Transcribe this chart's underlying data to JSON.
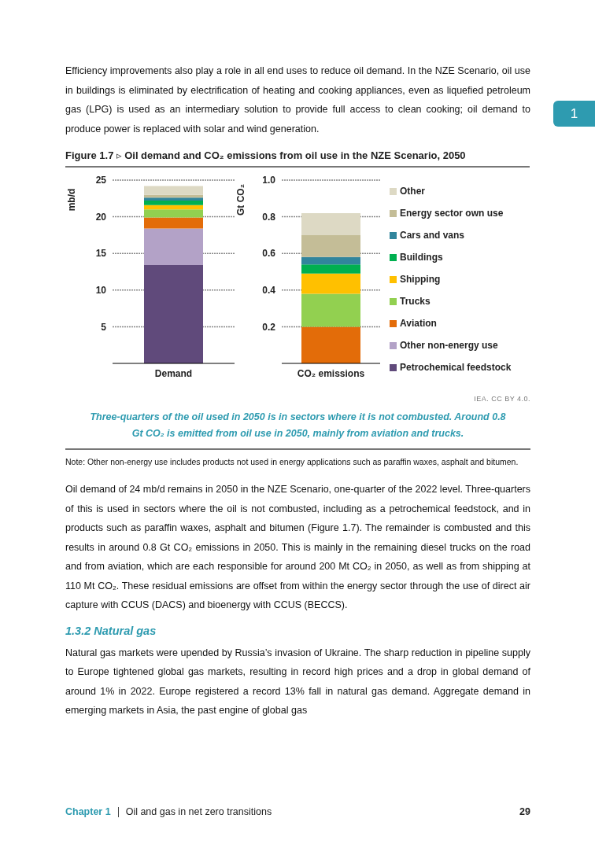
{
  "chart_data": [
    {
      "type": "bar",
      "title": "Figure 1.7 ▹ Oil demand and CO₂ emissions from oil use in the NZE Scenario, 2050",
      "annotations": [
        "Efficiency improvements also play a role in all end uses to reduce oil demand. In the NZE Scenario, oil use in buildings is eliminated by electrification of heating and cooking appliances, even as liquefied petroleum gas (LPG) is used as an intermediary solution to provide full access to clean cooking; oil demand to produce power is replaced with solar and wind generation.",
        "1"
      ],
      "ylabel": "mb/d",
      "categories": [
        "Demand"
      ],
      "stacked": true,
      "ylim": [
        0,
        25
      ],
      "yticks": [
        5,
        10,
        15,
        20,
        25
      ],
      "grid": "y",
      "series": [
        {
          "color": "#604a7b",
          "values": [
            13.4
          ]
        },
        {
          "color": "#b3a2c7",
          "values": [
            5.0
          ]
        },
        {
          "color": "#e36c09",
          "values": [
            1.5
          ]
        },
        {
          "color": "#92d050",
          "values": [
            1.1
          ]
        },
        {
          "color": "#ffc000",
          "values": [
            0.6
          ]
        },
        {
          "color": "#00b050",
          "values": [
            0.6
          ]
        },
        {
          "color": "#31859c",
          "values": [
            0.4
          ]
        },
        {
          "color": "#c4bd97",
          "values": [
            0.4
          ]
        },
        {
          "color": "#ddd9c4",
          "values": [
            1.2
          ]
        }
      ]
    },
    {
      "type": "bar",
      "ylabel": "Gt CO₂",
      "categories": [
        "CO₂ emissions"
      ],
      "stacked": true,
      "ylim": [
        0,
        1
      ],
      "yticks": [
        0.2,
        0.4,
        0.6,
        0.8,
        {
          "value": 1,
          "label": "1.0"
        }
      ],
      "grid": "y",
      "legend": "right",
      "annotations": [
        "IEA. CC BY 4.0.",
        "Three-quarters of the oil used in 2050 is in sectors where it is not combusted. Around 0.8 Gt CO₂ is emitted from oil use in 2050, mainly from aviation and trucks.",
        "Note: Other non-energy use includes products not used in energy applications such as paraffin waxes, asphalt and bitumen.",
        "Oil demand of 24 mb/d remains in 2050 in the NZE Scenario, one-quarter of the 2022 level. Three-quarters of this is used in sectors where the oil is not combusted, including as a petrochemical feedstock, and in products such as paraffin waxes, asphalt and bitumen (Figure 1.7). The remainder is combusted and this results in around 0.8 Gt CO₂ emissions in 2050. This is mainly in the remaining diesel trucks on the road and from aviation, which are each responsible for around 200 Mt CO₂ in 2050, as well as from shipping at 110 Mt CO₂. These residual emissions are offset from within the energy sector through the use of direct air capture with CCUS (DACS) and bioenergy with CCUS (BECCS).",
        "1.3.2 Natural gas",
        "Natural gas markets were upended by Russia’s invasion of Ukraine. The sharp reduction in pipeline supply to Europe tightened global gas markets, resulting in record high prices and a drop in global demand of around 1% in 2022. Europe registered a record 13% fall in natural gas demand. Aggregate demand in emerging markets in Asia, the past engine of global gas",
        "Chapter 1",
        "Oil and gas in net zero transitions",
        "29"
      ],
      "series": [
        {
          "name": "Petrochemical feedstock",
          "color": "#604a7b",
          "values": [
            0
          ]
        },
        {
          "name": "Other non-energy use",
          "color": "#b3a2c7",
          "values": [
            0
          ]
        },
        {
          "name": "Aviation",
          "color": "#e36c09",
          "values": [
            0.2
          ]
        },
        {
          "name": "Trucks",
          "color": "#92d050",
          "values": [
            0.18
          ]
        },
        {
          "name": "Shipping",
          "color": "#ffc000",
          "values": [
            0.11
          ]
        },
        {
          "name": "Buildings",
          "color": "#00b050",
          "values": [
            0.05
          ]
        },
        {
          "name": "Cars and vans",
          "color": "#31859c",
          "values": [
            0.04
          ]
        },
        {
          "name": "Energy sector own use",
          "color": "#c4bd97",
          "values": [
            0.12
          ]
        },
        {
          "name": "Other",
          "color": "#ddd9c4",
          "values": [
            0.12
          ]
        }
      ]
    }
  ]
}
